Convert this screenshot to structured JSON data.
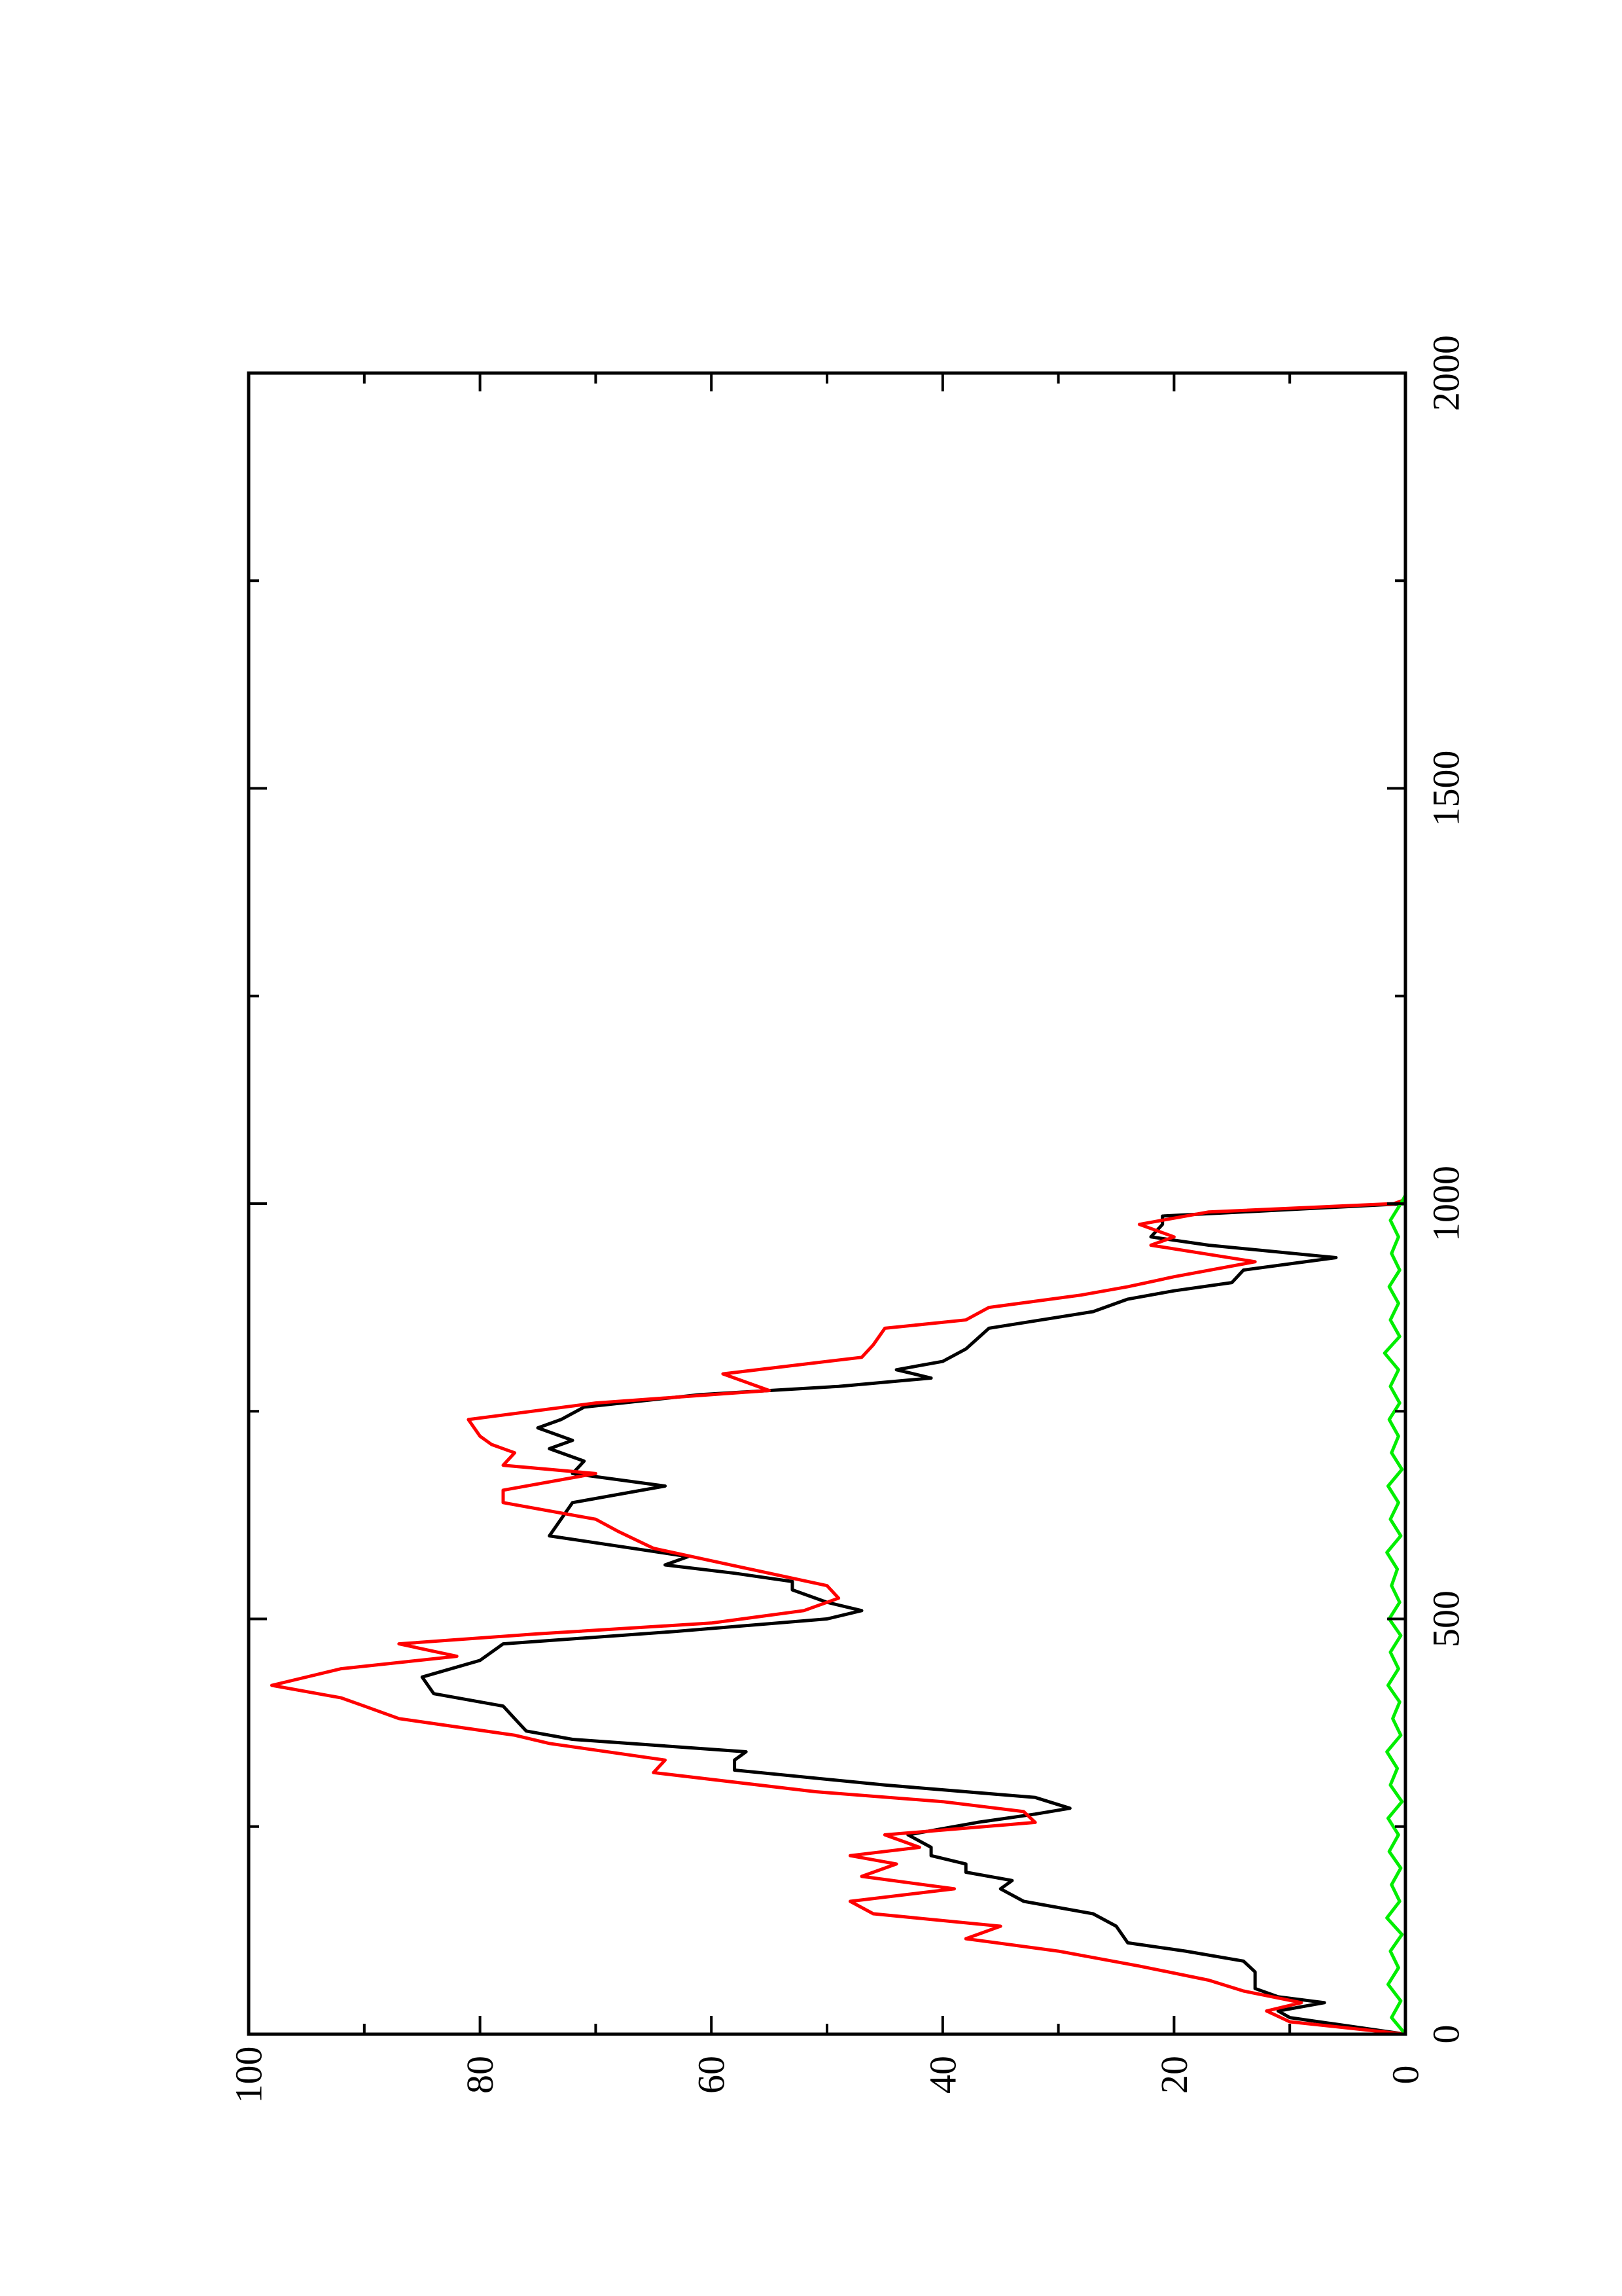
{
  "chart_data": {
    "type": "line",
    "title": "",
    "xlabel": "",
    "ylabel": "",
    "orientation": "rotated-90-counterclockwise",
    "xlim": [
      0,
      2000
    ],
    "ylim": [
      0,
      100
    ],
    "x_major_ticks": [
      0,
      500,
      1000,
      1500,
      2000
    ],
    "x_minor_ticks": [
      250,
      750,
      1250,
      1750
    ],
    "x_tick_labels": [
      "0",
      "500",
      "1000",
      "1500",
      "2000"
    ],
    "y_major_ticks": [
      0,
      20,
      40,
      60,
      80,
      100
    ],
    "y_minor_ticks": [
      10,
      30,
      50,
      70,
      90
    ],
    "y_tick_labels": [
      "0",
      "20",
      "40",
      "60",
      "80",
      "100"
    ],
    "grid": false,
    "legend": "none",
    "series": [
      {
        "color": "#000000",
        "points": [
          [
            0,
            0
          ],
          [
            20,
            10
          ],
          [
            28,
            11
          ],
          [
            38,
            7
          ],
          [
            45,
            11
          ],
          [
            55,
            13
          ],
          [
            75,
            13
          ],
          [
            88,
            14
          ],
          [
            100,
            19
          ],
          [
            110,
            24
          ],
          [
            130,
            25
          ],
          [
            145,
            27
          ],
          [
            160,
            33
          ],
          [
            175,
            35
          ],
          [
            185,
            34
          ],
          [
            195,
            38
          ],
          [
            205,
            38
          ],
          [
            215,
            41
          ],
          [
            225,
            41
          ],
          [
            240,
            43
          ],
          [
            255,
            37
          ],
          [
            265,
            32
          ],
          [
            272,
            29
          ],
          [
            285,
            32
          ],
          [
            300,
            45
          ],
          [
            318,
            58
          ],
          [
            330,
            58
          ],
          [
            340,
            57
          ],
          [
            355,
            72
          ],
          [
            365,
            76
          ],
          [
            380,
            77
          ],
          [
            395,
            78
          ],
          [
            410,
            84
          ],
          [
            430,
            85
          ],
          [
            450,
            80
          ],
          [
            470,
            78
          ],
          [
            485,
            63
          ],
          [
            500,
            50
          ],
          [
            510,
            47
          ],
          [
            520,
            50
          ],
          [
            535,
            53
          ],
          [
            545,
            53
          ],
          [
            555,
            58
          ],
          [
            565,
            64
          ],
          [
            575,
            62
          ],
          [
            600,
            74
          ],
          [
            620,
            73
          ],
          [
            640,
            72
          ],
          [
            660,
            64
          ],
          [
            675,
            72
          ],
          [
            690,
            71
          ],
          [
            705,
            74
          ],
          [
            715,
            72
          ],
          [
            730,
            75
          ],
          [
            740,
            73
          ],
          [
            755,
            71
          ],
          [
            770,
            61
          ],
          [
            780,
            49
          ],
          [
            790,
            41
          ],
          [
            800,
            44
          ],
          [
            810,
            40
          ],
          [
            825,
            38
          ],
          [
            850,
            36
          ],
          [
            870,
            27
          ],
          [
            885,
            24
          ],
          [
            895,
            20
          ],
          [
            905,
            15
          ],
          [
            920,
            14
          ],
          [
            935,
            6
          ],
          [
            950,
            17
          ],
          [
            960,
            22
          ],
          [
            975,
            21
          ],
          [
            985,
            21
          ],
          [
            1000,
            0
          ]
        ]
      },
      {
        "color": "#ff0000",
        "points": [
          [
            0,
            0
          ],
          [
            15,
            10
          ],
          [
            28,
            12
          ],
          [
            38,
            9
          ],
          [
            52,
            14
          ],
          [
            65,
            17
          ],
          [
            82,
            23
          ],
          [
            100,
            30
          ],
          [
            115,
            38
          ],
          [
            130,
            35
          ],
          [
            145,
            46
          ],
          [
            160,
            48
          ],
          [
            175,
            39
          ],
          [
            190,
            47
          ],
          [
            205,
            44
          ],
          [
            215,
            48
          ],
          [
            225,
            42
          ],
          [
            240,
            45
          ],
          [
            255,
            32
          ],
          [
            268,
            33
          ],
          [
            280,
            40
          ],
          [
            292,
            51
          ],
          [
            315,
            65
          ],
          [
            330,
            64
          ],
          [
            350,
            74
          ],
          [
            360,
            77
          ],
          [
            380,
            87
          ],
          [
            395,
            90
          ],
          [
            405,
            92
          ],
          [
            420,
            98
          ],
          [
            440,
            92
          ],
          [
            455,
            82
          ],
          [
            470,
            87
          ],
          [
            482,
            75
          ],
          [
            495,
            60
          ],
          [
            510,
            52
          ],
          [
            525,
            49
          ],
          [
            540,
            50
          ],
          [
            555,
            55
          ],
          [
            570,
            60
          ],
          [
            585,
            65
          ],
          [
            605,
            68
          ],
          [
            620,
            70
          ],
          [
            640,
            78
          ],
          [
            655,
            78
          ],
          [
            675,
            70
          ],
          [
            685,
            78
          ],
          [
            700,
            77
          ],
          [
            710,
            79
          ],
          [
            720,
            80
          ],
          [
            740,
            81
          ],
          [
            760,
            70
          ],
          [
            775,
            55
          ],
          [
            795,
            59
          ],
          [
            815,
            47
          ],
          [
            830,
            46
          ],
          [
            850,
            45
          ],
          [
            860,
            38
          ],
          [
            875,
            36
          ],
          [
            890,
            28
          ],
          [
            900,
            24
          ],
          [
            912,
            20
          ],
          [
            930,
            13
          ],
          [
            950,
            22
          ],
          [
            960,
            20
          ],
          [
            975,
            23
          ],
          [
            990,
            17
          ],
          [
            1000,
            1
          ],
          [
            1005,
            0
          ]
        ]
      },
      {
        "color": "#00ee00",
        "points": [
          [
            0,
            0
          ],
          [
            20,
            1.2
          ],
          [
            40,
            0.4
          ],
          [
            60,
            1.5
          ],
          [
            80,
            0.6
          ],
          [
            100,
            1.3
          ],
          [
            120,
            0.3
          ],
          [
            140,
            1.6
          ],
          [
            160,
            0.5
          ],
          [
            180,
            1.2
          ],
          [
            200,
            0.4
          ],
          [
            220,
            1.4
          ],
          [
            240,
            0.6
          ],
          [
            260,
            1.5
          ],
          [
            280,
            0.3
          ],
          [
            300,
            1.3
          ],
          [
            320,
            0.7
          ],
          [
            340,
            1.6
          ],
          [
            360,
            0.4
          ],
          [
            380,
            1.1
          ],
          [
            400,
            0.5
          ],
          [
            420,
            1.5
          ],
          [
            440,
            0.6
          ],
          [
            460,
            1.3
          ],
          [
            480,
            0.4
          ],
          [
            500,
            1.4
          ],
          [
            520,
            0.5
          ],
          [
            540,
            1.2
          ],
          [
            560,
            0.7
          ],
          [
            580,
            1.6
          ],
          [
            600,
            0.4
          ],
          [
            620,
            1.3
          ],
          [
            640,
            0.6
          ],
          [
            660,
            1.5
          ],
          [
            680,
            0.3
          ],
          [
            700,
            1.2
          ],
          [
            720,
            0.6
          ],
          [
            740,
            1.4
          ],
          [
            760,
            0.5
          ],
          [
            780,
            1.3
          ],
          [
            800,
            0.6
          ],
          [
            820,
            1.8
          ],
          [
            840,
            0.5
          ],
          [
            860,
            1.3
          ],
          [
            880,
            0.6
          ],
          [
            900,
            1.4
          ],
          [
            920,
            0.5
          ],
          [
            940,
            1.2
          ],
          [
            960,
            0.6
          ],
          [
            980,
            1.3
          ],
          [
            1000,
            0.4
          ],
          [
            1010,
            0
          ]
        ]
      }
    ]
  }
}
